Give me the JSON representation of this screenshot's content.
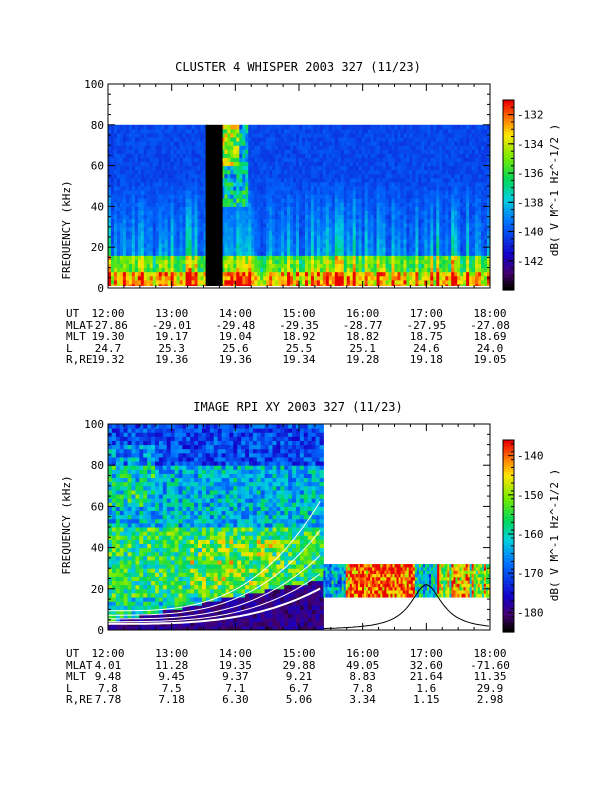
{
  "chart_data": [
    {
      "type": "heatmap",
      "title": "CLUSTER 4 WHISPER 2003 327 (11/23)",
      "ylabel": "FREQUENCY (kHz)",
      "ylim": [
        0,
        100
      ],
      "yticks": [
        "0",
        "20",
        "40",
        "60",
        "80",
        "100"
      ],
      "xlim": [
        "12:00",
        "18:00"
      ],
      "colorbar_label": "dB( V M^-1 Hz^-1/2 )",
      "colorbar_ticks": [
        "-132",
        "-134",
        "-136",
        "-138",
        "-140",
        "-142"
      ],
      "colorbar_range": [
        -144,
        -131
      ],
      "data_freq_max": 80,
      "data_gap": [
        "13:32",
        "13:48"
      ],
      "ephemeris": {
        "labels": [
          "UT",
          "MLAT",
          "MLT",
          "L",
          "R,RE"
        ],
        "columns": [
          [
            "12:00",
            "-27.86",
            "19.30",
            "24.7",
            "19.32"
          ],
          [
            "13:00",
            "-29.01",
            "19.17",
            "25.3",
            "19.36"
          ],
          [
            "14:00",
            "-29.48",
            "19.04",
            "25.6",
            "19.36"
          ],
          [
            "15:00",
            "-29.35",
            "18.92",
            "25.5",
            "19.34"
          ],
          [
            "16:00",
            "-28.77",
            "18.82",
            "25.1",
            "19.28"
          ],
          [
            "17:00",
            "-27.95",
            "18.75",
            "24.6",
            "19.18"
          ],
          [
            "18:00",
            "-27.08",
            "18.69",
            "24.0",
            "19.05"
          ]
        ]
      }
    },
    {
      "type": "heatmap",
      "title": "IMAGE RPI XY 2003 327 (11/23)",
      "ylabel": "FREQUENCY (kHz)",
      "ylim": [
        0,
        100
      ],
      "yticks": [
        "0",
        "20",
        "40",
        "60",
        "80",
        "100"
      ],
      "xlim": [
        "12:00",
        "18:00"
      ],
      "colorbar_label": "dB( V M^-1 Hz^-1/2 )",
      "colorbar_ticks": [
        "-140",
        "-150",
        "-160",
        "-170",
        "-180"
      ],
      "colorbar_range": [
        -185,
        -136
      ],
      "data_segments": [
        {
          "start": "12:00",
          "end": "15:23",
          "freq_range": [
            0,
            100
          ]
        },
        {
          "start": "15:23",
          "end": "18:00",
          "freq_range": [
            16,
            32
          ]
        }
      ],
      "plasma_curve_peak": {
        "time": "17:00",
        "freq": 22
      },
      "ephemeris": {
        "labels": [
          "UT",
          "MLAT",
          "MLT",
          "L",
          "R,RE"
        ],
        "columns": [
          [
            "12:00",
            "4.01",
            "9.48",
            "7.8",
            "7.78"
          ],
          [
            "13:00",
            "11.28",
            "9.45",
            "7.5",
            "7.18"
          ],
          [
            "14:00",
            "19.35",
            "9.37",
            "7.1",
            "6.30"
          ],
          [
            "15:00",
            "29.88",
            "9.21",
            "6.7",
            "5.06"
          ],
          [
            "16:00",
            "49.05",
            "8.83",
            "7.8",
            "3.34"
          ],
          [
            "17:00",
            "32.60",
            "21.64",
            "1.6",
            "1.15"
          ],
          [
            "18:00",
            "-71.60",
            "11.35",
            "29.9",
            "2.98"
          ]
        ]
      }
    }
  ]
}
